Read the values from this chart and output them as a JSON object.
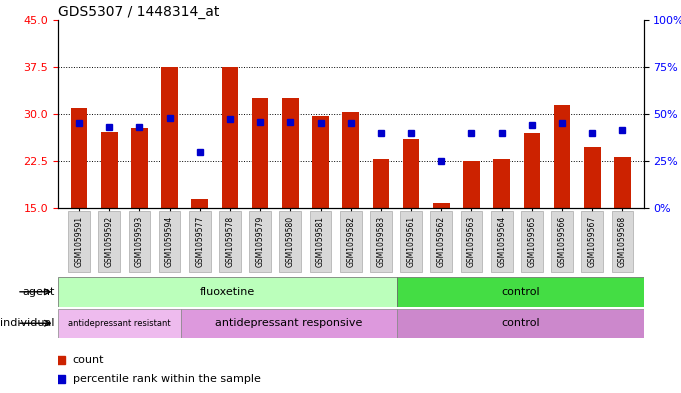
{
  "title": "GDS5307 / 1448314_at",
  "samples": [
    "GSM1059591",
    "GSM1059592",
    "GSM1059593",
    "GSM1059594",
    "GSM1059577",
    "GSM1059578",
    "GSM1059579",
    "GSM1059580",
    "GSM1059581",
    "GSM1059582",
    "GSM1059583",
    "GSM1059561",
    "GSM1059562",
    "GSM1059563",
    "GSM1059564",
    "GSM1059565",
    "GSM1059566",
    "GSM1059567",
    "GSM1059568"
  ],
  "bar_values": [
    31.0,
    27.2,
    27.8,
    37.5,
    16.5,
    37.5,
    32.5,
    32.5,
    29.7,
    30.3,
    22.8,
    26.0,
    15.8,
    22.5,
    22.8,
    27.0,
    31.5,
    24.8,
    23.2
  ],
  "blue_values": [
    28.5,
    28.0,
    28.0,
    29.3,
    24.0,
    29.2,
    28.7,
    28.7,
    28.5,
    28.5,
    27.0,
    27.0,
    22.5,
    27.0,
    27.0,
    28.3,
    28.5,
    27.0,
    27.5
  ],
  "ylim_left": [
    15,
    45
  ],
  "ylim_right": [
    0,
    100
  ],
  "yticks_left": [
    15,
    22.5,
    30,
    37.5,
    45
  ],
  "yticks_right": [
    0,
    25,
    50,
    75,
    100
  ],
  "bar_color": "#cc2200",
  "blue_color": "#0000cc",
  "bar_bottom": 15,
  "agent_groups": [
    {
      "label": "fluoxetine",
      "start": 0,
      "end": 11,
      "color": "#bbffbb"
    },
    {
      "label": "control",
      "start": 11,
      "end": 19,
      "color": "#44dd44"
    }
  ],
  "individual_groups": [
    {
      "label": "antidepressant resistant",
      "start": 0,
      "end": 4,
      "color": "#eebbee"
    },
    {
      "label": "antidepressant responsive",
      "start": 4,
      "end": 11,
      "color": "#dd99dd"
    },
    {
      "label": "control",
      "start": 11,
      "end": 19,
      "color": "#cc88cc"
    }
  ],
  "legend_items": [
    {
      "color": "#cc2200",
      "label": "count"
    },
    {
      "color": "#0000cc",
      "label": "percentile rank within the sample"
    }
  ],
  "grid_yticks": [
    22.5,
    30.0,
    37.5
  ],
  "title_fontsize": 10,
  "n_samples": 19
}
